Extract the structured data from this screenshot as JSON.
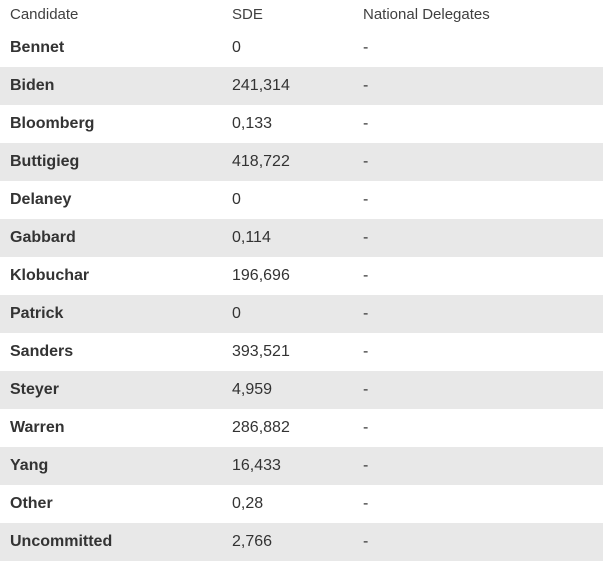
{
  "table": {
    "columns": [
      "Candidate",
      "SDE",
      "National Delegates"
    ],
    "rows": [
      {
        "candidate": "Bennet",
        "sde": "0",
        "national_delegates": "-"
      },
      {
        "candidate": "Biden",
        "sde": "241,314",
        "national_delegates": "-"
      },
      {
        "candidate": "Bloomberg",
        "sde": "0,133",
        "national_delegates": "-"
      },
      {
        "candidate": "Buttigieg",
        "sde": "418,722",
        "national_delegates": "-"
      },
      {
        "candidate": "Delaney",
        "sde": "0",
        "national_delegates": "-"
      },
      {
        "candidate": "Gabbard",
        "sde": "0,114",
        "national_delegates": "-"
      },
      {
        "candidate": "Klobuchar",
        "sde": "196,696",
        "national_delegates": "-"
      },
      {
        "candidate": "Patrick",
        "sde": "0",
        "national_delegates": "-"
      },
      {
        "candidate": "Sanders",
        "sde": "393,521",
        "national_delegates": "-"
      },
      {
        "candidate": "Steyer",
        "sde": "4,959",
        "national_delegates": "-"
      },
      {
        "candidate": "Warren",
        "sde": "286,882",
        "national_delegates": "-"
      },
      {
        "candidate": "Yang",
        "sde": "16,433",
        "national_delegates": "-"
      },
      {
        "candidate": "Other",
        "sde": "0,28",
        "national_delegates": "-"
      },
      {
        "candidate": "Uncommitted",
        "sde": "2,766",
        "national_delegates": "-"
      }
    ],
    "colors": {
      "stripe_background": "#e8e8e8",
      "row_background": "#ffffff",
      "header_text": "#404040",
      "body_text": "#333333"
    }
  }
}
